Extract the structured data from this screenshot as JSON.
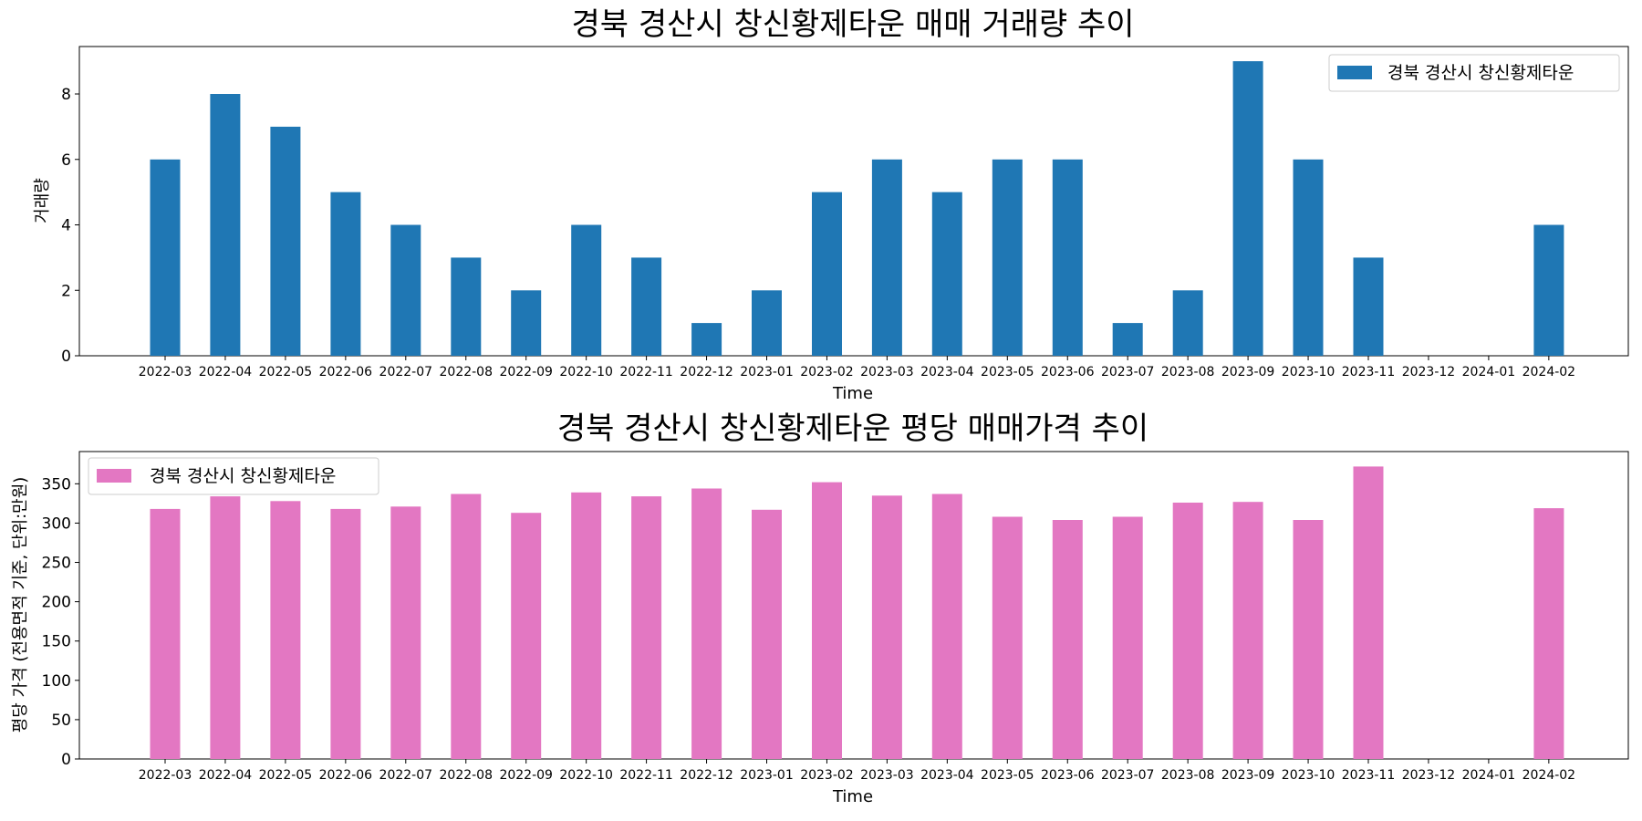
{
  "chart_data": [
    {
      "type": "bar",
      "title": "경북 경산시 창신황제타운 매매 거래량 추이",
      "xlabel": "Time",
      "ylabel": "거래량",
      "categories": [
        "2022-03",
        "2022-04",
        "2022-05",
        "2022-06",
        "2022-07",
        "2022-08",
        "2022-09",
        "2022-10",
        "2022-11",
        "2022-12",
        "2023-01",
        "2023-02",
        "2023-03",
        "2023-04",
        "2023-05",
        "2023-06",
        "2023-07",
        "2023-08",
        "2023-09",
        "2023-10",
        "2023-11",
        "2023-12",
        "2024-01",
        "2024-02"
      ],
      "series": [
        {
          "name": "경북 경산시 창신황제타운",
          "values": [
            6,
            8,
            7,
            5,
            4,
            3,
            2,
            4,
            3,
            1,
            2,
            5,
            6,
            5,
            6,
            6,
            1,
            2,
            9,
            6,
            3,
            0,
            0,
            4
          ]
        }
      ],
      "ylim": [
        0,
        9.45
      ],
      "yticks": [
        0,
        2,
        4,
        6,
        8
      ],
      "color": "#1f77b4",
      "legend_position": "upper right",
      "grid": false
    },
    {
      "type": "bar",
      "title": "경북 경산시 창신황제타운 평당 매매가격 추이",
      "xlabel": "Time",
      "ylabel": "평당 가격 (전용면적 기준, 단위:만원)",
      "categories": [
        "2022-03",
        "2022-04",
        "2022-05",
        "2022-06",
        "2022-07",
        "2022-08",
        "2022-09",
        "2022-10",
        "2022-11",
        "2022-12",
        "2023-01",
        "2023-02",
        "2023-03",
        "2023-04",
        "2023-05",
        "2023-06",
        "2023-07",
        "2023-08",
        "2023-09",
        "2023-10",
        "2023-11",
        "2023-12",
        "2024-01",
        "2024-02"
      ],
      "series": [
        {
          "name": "경북 경산시 창신황제타운",
          "values": [
            318,
            334,
            328,
            318,
            321,
            337,
            313,
            339,
            334,
            344,
            317,
            352,
            335,
            337,
            308,
            304,
            308,
            326,
            327,
            304,
            372,
            0,
            0,
            319
          ]
        }
      ],
      "ylim": [
        0,
        391
      ],
      "yticks": [
        0,
        50,
        100,
        150,
        200,
        250,
        300,
        350
      ],
      "color": "#e377c2",
      "legend_position": "upper left",
      "grid": false
    }
  ]
}
